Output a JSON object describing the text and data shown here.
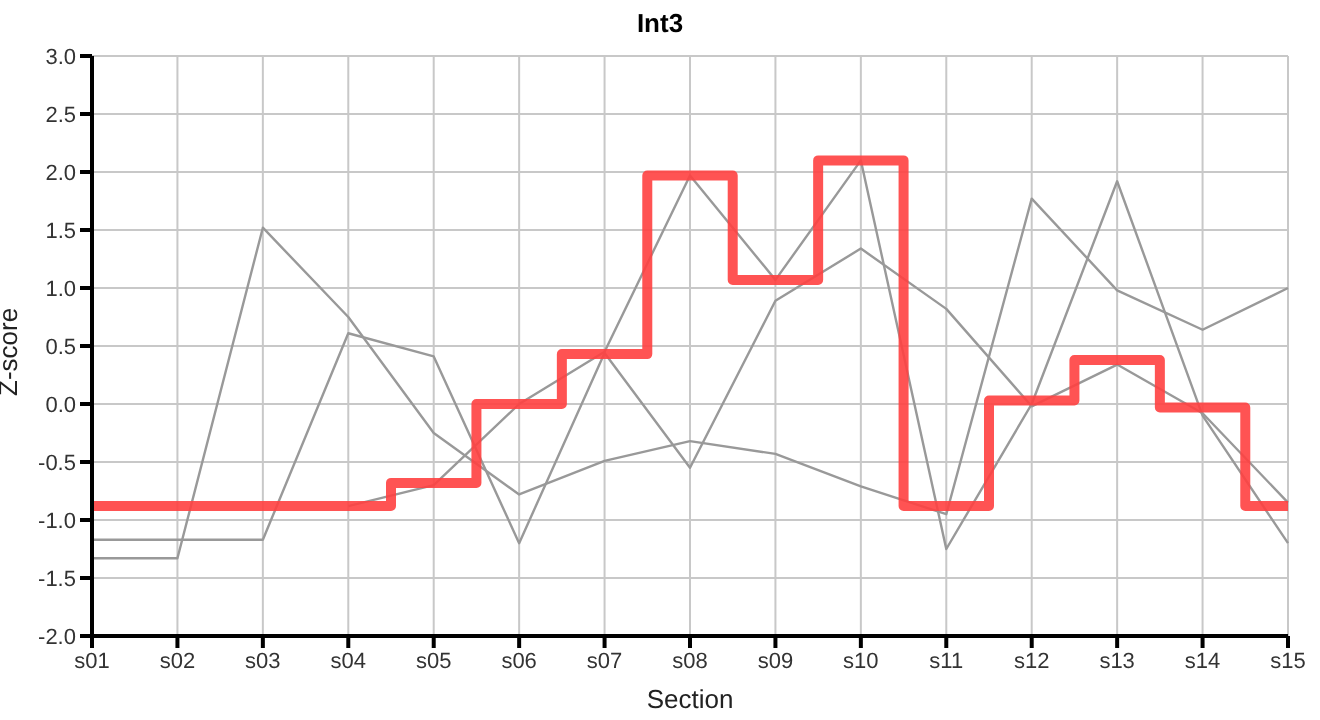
{
  "chart_data": {
    "type": "line",
    "title": "Int3",
    "xlabel": "Section",
    "ylabel": "Z-score",
    "categories": [
      "s01",
      "s02",
      "s03",
      "s04",
      "s05",
      "s06",
      "s07",
      "s08",
      "s09",
      "s10",
      "s11",
      "s12",
      "s13",
      "s14",
      "s15"
    ],
    "series": [
      {
        "color": "#999999",
        "values": [
          -1.33,
          -1.33,
          1.52,
          0.75,
          -0.25,
          -0.78,
          -0.49,
          -0.32,
          -0.43,
          -0.71,
          -0.95,
          1.77,
          0.98,
          0.64,
          1.0
        ]
      },
      {
        "color": "#999999",
        "values": [
          -1.17,
          -1.17,
          -1.17,
          0.61,
          0.41,
          -1.2,
          0.44,
          -0.55,
          0.89,
          1.34,
          0.82,
          -0.02,
          0.34,
          -0.08,
          -0.85
        ]
      },
      {
        "color": "#999999",
        "values": [
          null,
          null,
          null,
          -0.88,
          -0.7,
          0.0,
          0.45,
          1.97,
          1.07,
          2.1,
          -1.25,
          0.0,
          1.92,
          -0.1,
          -1.2
        ]
      },
      {
        "type": "step",
        "color": "#ff4040",
        "values": [
          -0.88,
          -0.88,
          -0.88,
          -0.88,
          -0.68,
          0.0,
          0.43,
          1.97,
          1.07,
          2.1,
          -0.88,
          0.03,
          0.38,
          -0.03,
          -0.88
        ]
      }
    ],
    "ylim": [
      -2,
      3
    ],
    "yticks": [
      {
        "value": -2,
        "label": "-2.0"
      },
      {
        "value": -1.5,
        "label": "-1.5"
      },
      {
        "value": -1,
        "label": "-1.0"
      },
      {
        "value": -0.5,
        "label": "-0.5"
      },
      {
        "value": 0,
        "label": "0.0"
      },
      {
        "value": 0.5,
        "label": "0.5"
      },
      {
        "value": 1,
        "label": "1.0"
      },
      {
        "value": 1.5,
        "label": "1.5"
      },
      {
        "value": 2,
        "label": "2.0"
      },
      {
        "value": 2.5,
        "label": "2.5"
      },
      {
        "value": 3,
        "label": "3.0"
      }
    ],
    "grid": true,
    "legend": false,
    "marker": "none",
    "line_style": "solid"
  }
}
